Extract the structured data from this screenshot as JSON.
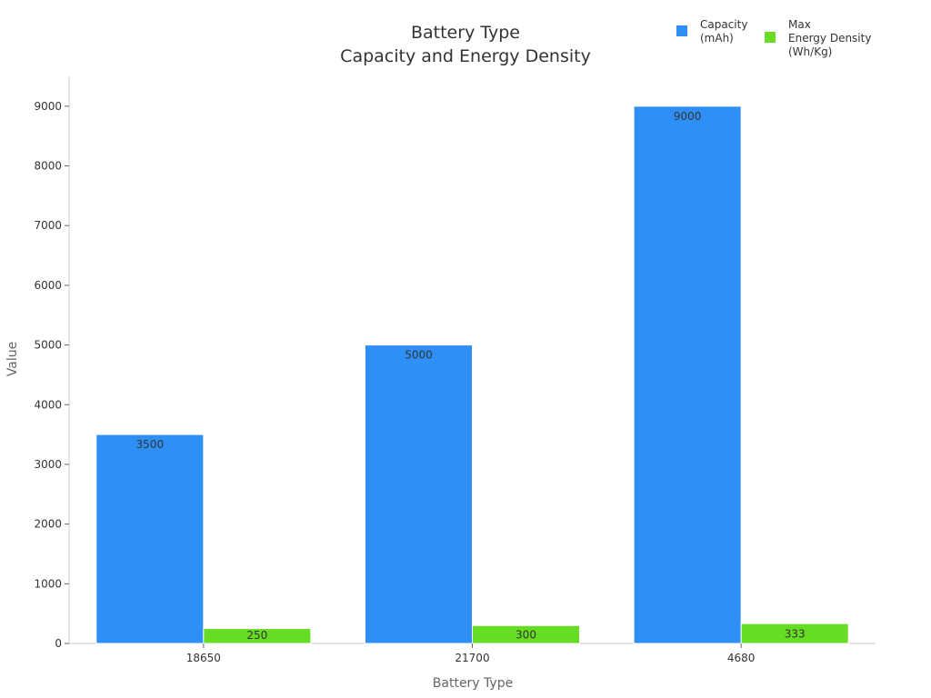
{
  "chart_data": {
    "type": "bar",
    "title": "Battery Type",
    "subtitle": "Capacity and Energy Density",
    "xlabel": "Battery Type",
    "ylabel": "Value",
    "categories": [
      "18650",
      "21700",
      "4680"
    ],
    "series": [
      {
        "name": "Capacity (mAh)",
        "legend_lines": [
          "Capacity",
          "(mAh)"
        ],
        "color": "#2E90F7",
        "values": [
          3500,
          5000,
          9000
        ]
      },
      {
        "name": "Max Energy Density (Wh/Kg)",
        "legend_lines": [
          "Max",
          "Energy Density",
          "(Wh/Kg)"
        ],
        "color": "#66DD22",
        "values": [
          250,
          300,
          333
        ]
      }
    ],
    "ylim": [
      0,
      9500
    ],
    "yticks": [
      0,
      1000,
      2000,
      3000,
      4000,
      5000,
      6000,
      7000,
      8000,
      9000
    ],
    "legend_position": "top-right",
    "grid": false,
    "data_labels": true
  }
}
